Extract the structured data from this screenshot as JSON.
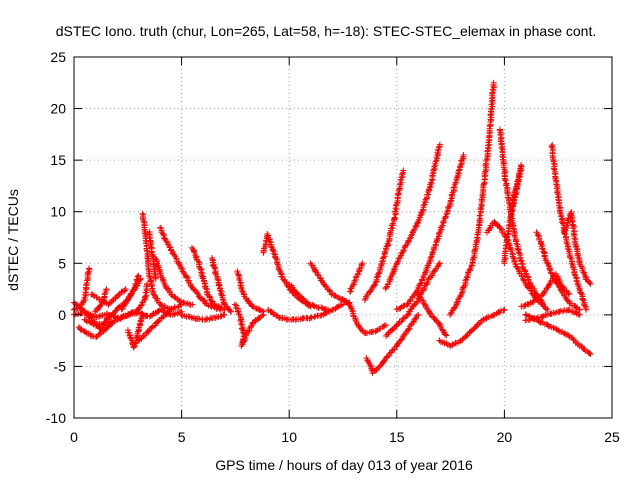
{
  "chart_data": {
    "type": "scatter",
    "title": "dSTEC Iono. truth (chur, Lon=265, Lat=58, h=-18): STEC-STEC_elemax in phase cont.",
    "xlabel": "GPS time / hours of day 013 of year 2016",
    "ylabel": "dSTEC  / TECUs",
    "xlim": [
      0,
      25
    ],
    "ylim": [
      -10,
      25
    ],
    "xticks": [
      0,
      5,
      10,
      15,
      20,
      25
    ],
    "yticks": [
      -10,
      -5,
      0,
      5,
      10,
      15,
      20,
      25
    ],
    "xtick_labels": [
      "0",
      "5",
      "10",
      "15",
      "20",
      "25"
    ],
    "ytick_labels": [
      "-10",
      "-5",
      "0",
      "5",
      "10",
      "15",
      "20",
      "25"
    ],
    "grid": true,
    "legend": "none",
    "marker": "+",
    "color": "#ff0000",
    "arcs": [
      [
        [
          0.0,
          0.5
        ],
        [
          0.3,
          0.8
        ],
        [
          0.5,
          1.5
        ],
        [
          0.6,
          3.0
        ],
        [
          0.7,
          4.5
        ]
      ],
      [
        [
          0.0,
          1.2
        ],
        [
          0.5,
          0.3
        ],
        [
          1.0,
          -0.8
        ],
        [
          1.3,
          -1.5
        ],
        [
          1.5,
          -0.5
        ],
        [
          2.0,
          0.5
        ],
        [
          2.5,
          1.5
        ],
        [
          2.8,
          2.5
        ],
        [
          3.1,
          3.5
        ]
      ],
      [
        [
          1.0,
          0.3
        ],
        [
          1.2,
          0.8
        ],
        [
          1.4,
          1.5
        ],
        [
          1.5,
          2.5
        ]
      ],
      [
        [
          0.5,
          -0.5
        ],
        [
          1.0,
          -1.0
        ],
        [
          1.5,
          -0.8
        ],
        [
          2.0,
          -0.5
        ],
        [
          2.5,
          0.0
        ],
        [
          3.0,
          0.5
        ],
        [
          3.3,
          1.5
        ],
        [
          3.4,
          3.0
        ]
      ],
      [
        [
          2.5,
          -1.5
        ],
        [
          2.7,
          -2.5
        ],
        [
          2.8,
          -3.2
        ],
        [
          3.0,
          -1.5
        ],
        [
          3.2,
          0.0
        ]
      ],
      [
        [
          2.2,
          0.5
        ],
        [
          2.5,
          1.5
        ],
        [
          2.8,
          2.5
        ],
        [
          3.0,
          3.8
        ]
      ],
      [
        [
          3.2,
          9.8
        ],
        [
          3.3,
          8.0
        ],
        [
          3.4,
          6.0
        ],
        [
          3.5,
          4.0
        ],
        [
          3.7,
          2.0
        ],
        [
          4.0,
          1.0
        ],
        [
          4.5,
          0.5
        ]
      ],
      [
        [
          3.5,
          8.0
        ],
        [
          3.6,
          6.5
        ],
        [
          3.7,
          5.0
        ],
        [
          3.8,
          3.5
        ]
      ],
      [
        [
          3.8,
          5.5
        ],
        [
          4.0,
          4.0
        ],
        [
          4.2,
          3.0
        ],
        [
          4.5,
          2.0
        ],
        [
          5.0,
          1.2
        ],
        [
          5.5,
          1.0
        ]
      ],
      [
        [
          4.0,
          8.5
        ],
        [
          4.2,
          7.5
        ],
        [
          4.6,
          6.0
        ],
        [
          5.0,
          4.5
        ],
        [
          5.4,
          3.0
        ],
        [
          5.8,
          1.8
        ],
        [
          6.2,
          1.0
        ],
        [
          6.8,
          0.5
        ]
      ],
      [
        [
          5.5,
          6.5
        ],
        [
          5.8,
          5.0
        ],
        [
          6.0,
          3.5
        ],
        [
          6.2,
          2.0
        ],
        [
          6.5,
          1.0
        ],
        [
          7.0,
          0.5
        ]
      ],
      [
        [
          5.0,
          0.0
        ],
        [
          5.5,
          -0.3
        ],
        [
          6.0,
          -0.5
        ],
        [
          6.5,
          -0.3
        ],
        [
          7.0,
          0.0
        ]
      ],
      [
        [
          6.4,
          5.5
        ],
        [
          6.6,
          4.0
        ],
        [
          6.8,
          2.5
        ],
        [
          7.0,
          1.0
        ],
        [
          7.3,
          0.3
        ]
      ],
      [
        [
          7.5,
          1.0
        ],
        [
          7.7,
          0.0
        ],
        [
          7.8,
          -1.0
        ],
        [
          7.9,
          -2.0
        ],
        [
          7.8,
          -3.0
        ],
        [
          8.0,
          -2.0
        ],
        [
          8.3,
          -0.8
        ],
        [
          8.8,
          0.0
        ]
      ],
      [
        [
          7.6,
          4.2
        ],
        [
          7.8,
          2.5
        ],
        [
          8.0,
          1.5
        ],
        [
          8.3,
          0.8
        ],
        [
          8.8,
          0.3
        ]
      ],
      [
        [
          8.8,
          6.0
        ],
        [
          9.0,
          7.8
        ],
        [
          9.3,
          6.0
        ],
        [
          9.6,
          4.0
        ],
        [
          10.0,
          2.5
        ],
        [
          10.5,
          1.5
        ],
        [
          11.0,
          0.8
        ]
      ],
      [
        [
          9.0,
          0.5
        ],
        [
          9.5,
          -0.2
        ],
        [
          10.0,
          -0.5
        ],
        [
          10.5,
          -0.4
        ],
        [
          11.0,
          -0.3
        ],
        [
          11.5,
          0.0
        ],
        [
          12.0,
          0.5
        ],
        [
          12.5,
          1.0
        ]
      ],
      [
        [
          10.0,
          3.0
        ],
        [
          10.4,
          2.0
        ],
        [
          10.8,
          1.2
        ],
        [
          11.2,
          0.8
        ],
        [
          11.8,
          0.5
        ]
      ],
      [
        [
          11.0,
          5.0
        ],
        [
          11.3,
          4.0
        ],
        [
          11.6,
          3.0
        ],
        [
          12.0,
          2.0
        ],
        [
          12.4,
          1.5
        ],
        [
          12.8,
          1.2
        ]
      ],
      [
        [
          12.5,
          1.5
        ],
        [
          12.8,
          1.0
        ],
        [
          13.0,
          0.0
        ],
        [
          13.2,
          -1.0
        ],
        [
          13.5,
          -1.8
        ],
        [
          14.0,
          -1.6
        ],
        [
          14.5,
          -1.0
        ]
      ],
      [
        [
          12.8,
          2.2
        ],
        [
          13.0,
          3.0
        ],
        [
          13.2,
          4.0
        ],
        [
          13.4,
          5.0
        ]
      ],
      [
        [
          13.5,
          1.5
        ],
        [
          14.0,
          3.0
        ],
        [
          14.3,
          5.0
        ],
        [
          14.6,
          7.0
        ],
        [
          14.9,
          9.5
        ],
        [
          15.1,
          12.0
        ],
        [
          15.3,
          14.0
        ]
      ],
      [
        [
          13.6,
          -4.2
        ],
        [
          13.8,
          -5.0
        ],
        [
          13.9,
          -5.6
        ],
        [
          14.2,
          -5.0
        ],
        [
          14.5,
          -4.2
        ],
        [
          15.0,
          -3.0
        ],
        [
          15.5,
          -1.5
        ],
        [
          16.0,
          0.0
        ]
      ],
      [
        [
          14.5,
          -2.0
        ],
        [
          15.0,
          -1.0
        ],
        [
          15.5,
          0.0
        ],
        [
          16.0,
          1.5
        ],
        [
          16.5,
          3.5
        ],
        [
          17.0,
          5.0
        ]
      ],
      [
        [
          14.5,
          2.5
        ],
        [
          15.0,
          5.0
        ],
        [
          15.5,
          7.0
        ],
        [
          16.0,
          9.0
        ],
        [
          16.5,
          12.0
        ],
        [
          17.0,
          16.5
        ]
      ],
      [
        [
          16.0,
          2.0
        ],
        [
          16.3,
          1.0
        ],
        [
          16.6,
          0.0
        ],
        [
          17.0,
          -1.0
        ],
        [
          17.3,
          -2.0
        ]
      ],
      [
        [
          15.0,
          0.5
        ],
        [
          15.5,
          1.0
        ],
        [
          16.0,
          2.5
        ],
        [
          16.5,
          5.0
        ],
        [
          17.0,
          8.0
        ],
        [
          17.5,
          11.0
        ],
        [
          17.9,
          14.0
        ],
        [
          18.1,
          15.5
        ]
      ],
      [
        [
          17.0,
          -2.5
        ],
        [
          17.5,
          -3.0
        ],
        [
          18.0,
          -2.5
        ],
        [
          18.5,
          -1.5
        ],
        [
          19.0,
          -0.5
        ],
        [
          19.5,
          0.0
        ],
        [
          20.0,
          0.5
        ]
      ],
      [
        [
          17.5,
          0.0
        ],
        [
          18.0,
          2.0
        ],
        [
          18.5,
          5.0
        ],
        [
          18.8,
          8.0
        ],
        [
          19.0,
          12.0
        ],
        [
          19.3,
          17.0
        ],
        [
          19.5,
          22.5
        ]
      ],
      [
        [
          19.2,
          8.0
        ],
        [
          19.5,
          9.0
        ],
        [
          19.8,
          8.5
        ],
        [
          20.2,
          7.0
        ],
        [
          20.5,
          5.0
        ],
        [
          21.0,
          3.0
        ],
        [
          21.5,
          1.5
        ],
        [
          22.0,
          0.5
        ]
      ],
      [
        [
          19.8,
          18.0
        ],
        [
          20.0,
          14.0
        ],
        [
          20.2,
          11.0
        ],
        [
          20.5,
          7.5
        ],
        [
          20.8,
          5.0
        ],
        [
          21.2,
          3.0
        ],
        [
          21.8,
          1.0
        ]
      ],
      [
        [
          20.3,
          10.0
        ],
        [
          20.5,
          12.0
        ],
        [
          20.8,
          14.5
        ],
        [
          20.5,
          11.5
        ],
        [
          20.2,
          8.5
        ],
        [
          20.0,
          5.0
        ]
      ],
      [
        [
          21.0,
          -0.5
        ],
        [
          21.5,
          -0.3
        ],
        [
          22.0,
          0.0
        ],
        [
          22.5,
          0.3
        ],
        [
          23.0,
          0.5
        ],
        [
          23.5,
          0.0
        ]
      ],
      [
        [
          20.8,
          0.8
        ],
        [
          21.3,
          1.2
        ],
        [
          21.8,
          2.0
        ],
        [
          22.1,
          3.0
        ],
        [
          22.4,
          4.0
        ],
        [
          22.6,
          3.0
        ],
        [
          23.0,
          2.0
        ]
      ],
      [
        [
          21.5,
          8.0
        ],
        [
          21.7,
          7.0
        ],
        [
          21.9,
          5.5
        ],
        [
          22.2,
          4.0
        ],
        [
          22.6,
          2.5
        ],
        [
          23.0,
          1.2
        ],
        [
          23.5,
          0.5
        ]
      ],
      [
        [
          21.0,
          0.0
        ],
        [
          21.5,
          -0.5
        ],
        [
          22.0,
          -1.0
        ],
        [
          22.5,
          -1.5
        ],
        [
          23.0,
          -2.0
        ],
        [
          23.5,
          -3.0
        ],
        [
          24.0,
          -3.8
        ]
      ],
      [
        [
          22.2,
          16.5
        ],
        [
          22.4,
          13.0
        ],
        [
          22.6,
          10.0
        ],
        [
          22.9,
          7.0
        ],
        [
          23.2,
          4.5
        ],
        [
          23.5,
          2.5
        ],
        [
          23.8,
          0.5
        ]
      ],
      [
        [
          22.8,
          8.0
        ],
        [
          23.1,
          10.0
        ],
        [
          23.3,
          7.0
        ],
        [
          23.5,
          5.0
        ],
        [
          23.8,
          3.5
        ],
        [
          24.0,
          3.0
        ]
      ],
      [
        [
          0.0,
          0.0
        ],
        [
          0.5,
          0.2
        ],
        [
          1.0,
          -0.2
        ],
        [
          1.5,
          0.1
        ],
        [
          2.0,
          -0.3
        ],
        [
          2.5,
          0.0
        ],
        [
          3.0,
          0.2
        ],
        [
          3.5,
          -0.2
        ],
        [
          4.0,
          0.5
        ],
        [
          4.5,
          0.0
        ],
        [
          5.0,
          0.3
        ]
      ],
      [
        [
          0.2,
          -1.2
        ],
        [
          0.6,
          -1.8
        ],
        [
          1.0,
          -2.2
        ],
        [
          1.4,
          -1.5
        ],
        [
          1.8,
          -0.8
        ]
      ],
      [
        [
          0.8,
          2.0
        ],
        [
          1.2,
          1.5
        ],
        [
          1.6,
          1.0
        ],
        [
          2.0,
          1.8
        ],
        [
          2.4,
          2.5
        ]
      ],
      [
        [
          3.0,
          -2.5
        ],
        [
          3.5,
          -1.5
        ],
        [
          4.0,
          -0.5
        ],
        [
          4.5,
          0.5
        ],
        [
          5.0,
          1.0
        ]
      ]
    ]
  }
}
